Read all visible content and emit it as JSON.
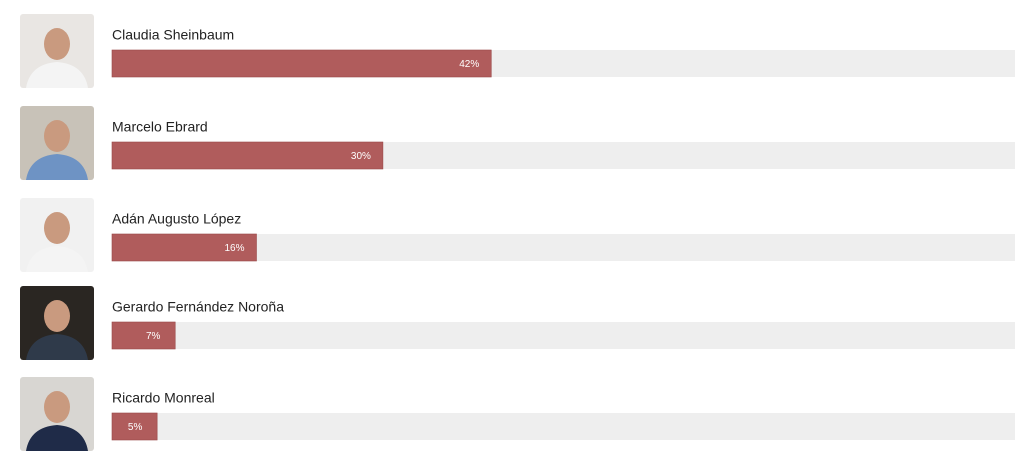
{
  "chart_data": {
    "type": "bar",
    "orientation": "horizontal",
    "categories": [
      "Claudia Sheinbaum",
      "Marcelo Ebrard",
      "Adán Augusto López",
      "Gerardo Fernández Noroña",
      "Ricardo Monreal"
    ],
    "values": [
      42,
      30,
      16,
      7,
      5
    ],
    "value_labels": [
      "42%",
      "30%",
      "16%",
      "7%",
      "5%"
    ],
    "color": "#b05c5c",
    "xlim": [
      0,
      100
    ]
  }
}
